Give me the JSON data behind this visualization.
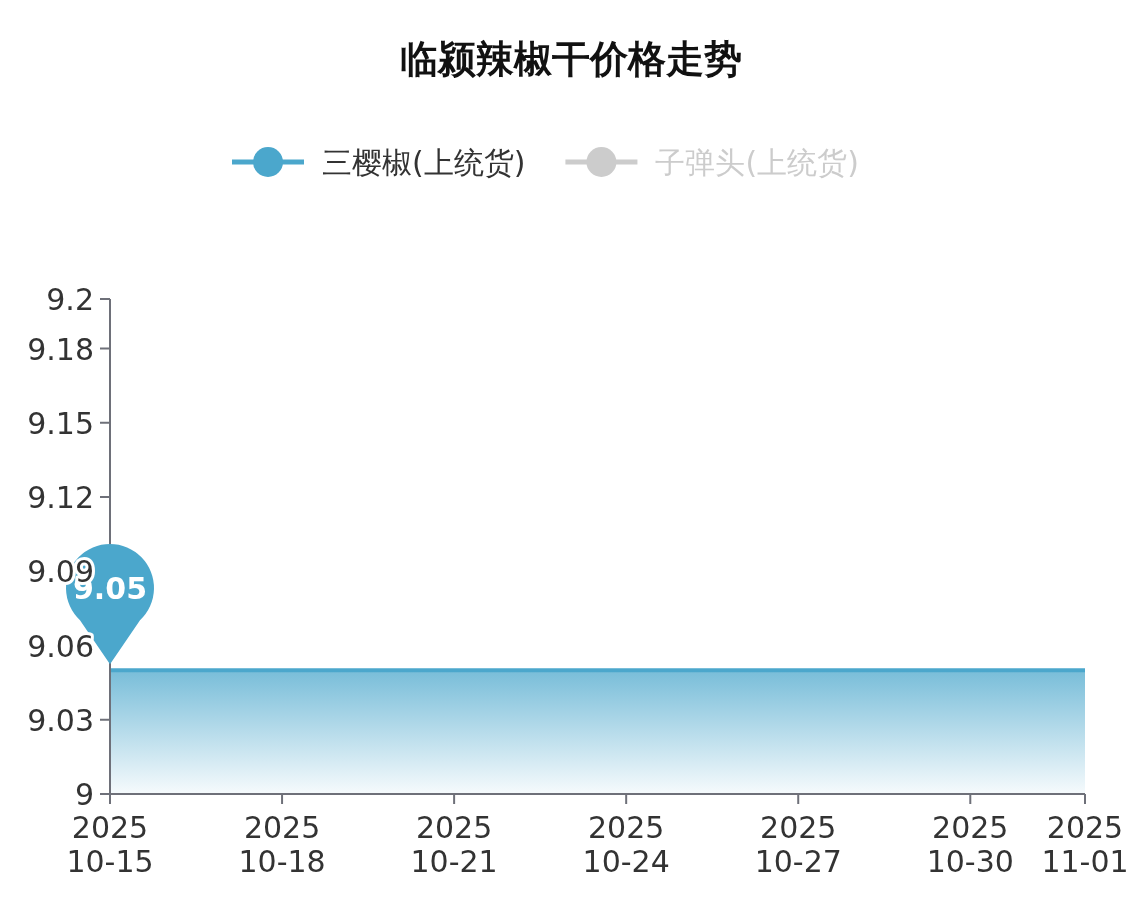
{
  "chart_data": {
    "type": "area",
    "title": "临颍辣椒干价格走势",
    "legend": "top",
    "x": [
      "2025-10-15",
      "2025-10-16",
      "2025-10-17",
      "2025-10-18",
      "2025-10-19",
      "2025-10-20",
      "2025-10-21",
      "2025-10-22",
      "2025-10-23",
      "2025-10-24",
      "2025-10-25",
      "2025-10-26",
      "2025-10-27",
      "2025-10-28",
      "2025-10-29",
      "2025-10-30",
      "2025-10-31",
      "2025-11-01"
    ],
    "series": [
      {
        "name": "三樱椒(上统货)",
        "color": "#4ba7cc",
        "values": [
          9.05,
          9.05,
          9.05,
          9.05,
          9.05,
          9.05,
          9.05,
          9.05,
          9.05,
          9.05,
          9.05,
          9.05,
          9.05,
          9.05,
          9.05,
          9.05,
          9.05,
          9.05
        ]
      },
      {
        "name": "子弹头(上统货)",
        "color": "#cccccc",
        "values": [
          null,
          null,
          null,
          null,
          null,
          null,
          null,
          null,
          null,
          null,
          null,
          null,
          null,
          null,
          null,
          null,
          null,
          null
        ]
      }
    ],
    "xlim": [
      "2025-10-15",
      "2025-11-01"
    ],
    "xticks": [
      {
        "value": "2025-10-15",
        "label": "2025\n10-15"
      },
      {
        "value": "2025-10-18",
        "label": "2025\n10-18"
      },
      {
        "value": "2025-10-21",
        "label": "2025\n10-21"
      },
      {
        "value": "2025-10-24",
        "label": "2025\n10-24"
      },
      {
        "value": "2025-10-27",
        "label": "2025\n10-27"
      },
      {
        "value": "2025-10-30",
        "label": "2025\n10-30"
      },
      {
        "value": "2025-11-01",
        "label": "2025\n11-01"
      }
    ],
    "ylim": [
      9,
      9.2
    ],
    "yticks": [
      9,
      9.03,
      9.06,
      9.09,
      9.12,
      9.15,
      9.18,
      9.2
    ],
    "annotations": [
      {
        "text": "9.05",
        "x": "2025-10-15",
        "y": 9.05
      }
    ]
  }
}
